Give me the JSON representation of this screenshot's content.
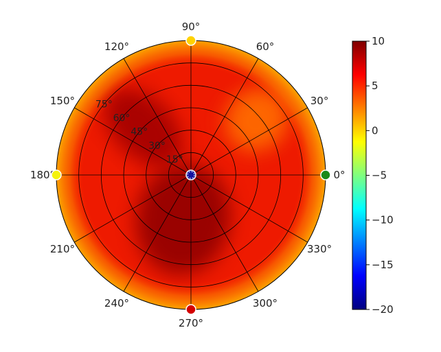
{
  "chart_data": {
    "type": "heatmap",
    "subtype": "polar",
    "colormap": "jet",
    "angle_tick_labels": [
      "0°",
      "30°",
      "60°",
      "90°",
      "120°",
      "150°",
      "180°",
      "210°",
      "240°",
      "270°",
      "300°",
      "330°"
    ],
    "radial_tick_labels": [
      "15°",
      "30°",
      "45°",
      "60°",
      "75°"
    ],
    "radial_ticks": [
      15,
      30,
      45,
      60,
      75
    ],
    "radial_range": [
      0,
      90
    ],
    "colorbar": {
      "range": [
        -20,
        10
      ],
      "ticks": [
        10,
        5,
        0,
        -5,
        -10,
        -15,
        -20
      ],
      "tick_labels": [
        "10",
        "5",
        "0",
        "−5",
        "−10",
        "−15",
        "−20"
      ]
    },
    "regions": [
      {
        "azimuth_range": [
          0,
          360
        ],
        "radius_range": [
          0,
          90
        ],
        "value": 7,
        "note": "background"
      },
      {
        "azimuth_range": [
          20,
          60
        ],
        "radius_range": [
          40,
          75
        ],
        "value": 3
      },
      {
        "azimuth_range": [
          110,
          160
        ],
        "radius_range": [
          20,
          70
        ],
        "value": 9
      },
      {
        "azimuth_range": [
          200,
          320
        ],
        "radius_range": [
          0,
          60
        ],
        "value": 9.5
      },
      {
        "azimuth_range": [
          0,
          360
        ],
        "radius_range": [
          82,
          90
        ],
        "value": 3
      }
    ],
    "markers": [
      {
        "azimuth": 0,
        "elevation": 0,
        "color": "#1a8a1a",
        "shape": "circle"
      },
      {
        "azimuth": 90,
        "elevation": 0,
        "color": "#ffd200",
        "shape": "circle"
      },
      {
        "azimuth": 180,
        "elevation": 0,
        "color": "#f5f20a",
        "shape": "circle"
      },
      {
        "azimuth": 270,
        "elevation": 0,
        "color": "#d40000",
        "shape": "circle"
      },
      {
        "azimuth": 0,
        "elevation": 90,
        "color": "#1515a0",
        "shape": "circle"
      }
    ],
    "grid": true
  }
}
